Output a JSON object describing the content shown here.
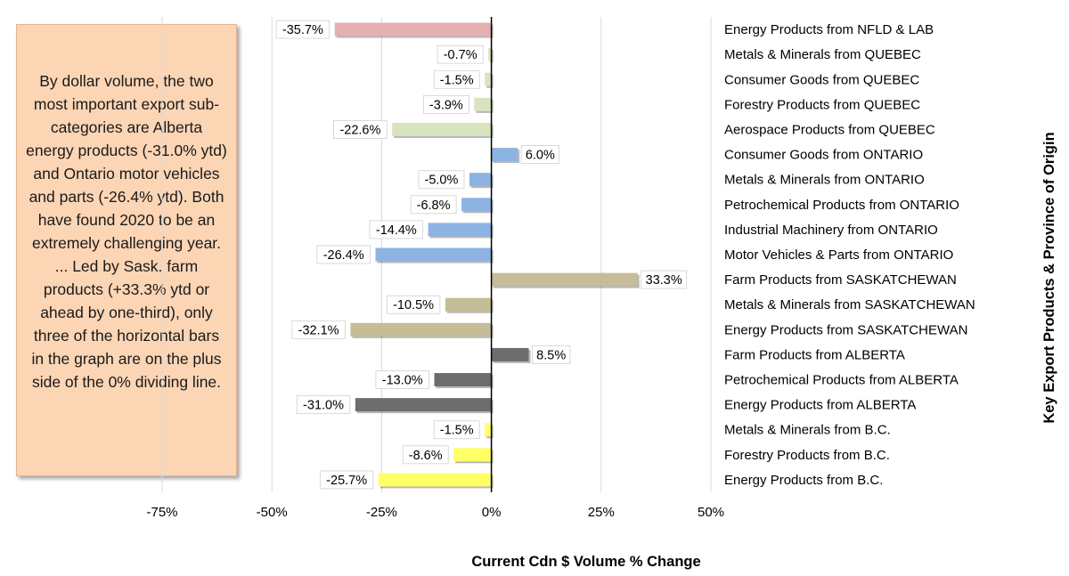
{
  "annotation": "By dollar volume, the two most important export sub-categories are Alberta energy products (-31.0% ytd) and Ontario motor vehicles and parts (-26.4% ytd). Both have found 2020 to be an extremely challenging year. ... Led by Sask. farm products (+33.3% ytd or ahead by one-third), only three of the horizontal bars in the graph are on the plus side of the 0% dividing line.",
  "chart_data": {
    "type": "bar",
    "orientation": "horizontal",
    "xlabel": "Current Cdn $ Volume % Change",
    "ylabel": "Key Export Products & Province of Origin",
    "xlim": [
      -75,
      50
    ],
    "xticks": [
      -75,
      -50,
      -25,
      0,
      25,
      50
    ],
    "xtick_labels": [
      "-75%",
      "-50%",
      "-25%",
      "0%",
      "25%",
      "50%"
    ],
    "grid": "vertical",
    "categories": [
      "Energy Products from NFLD & LAB",
      "Metals & Minerals from QUEBEC",
      "Consumer Goods from QUEBEC",
      "Forestry Products from QUEBEC",
      "Aerospace Products from QUEBEC",
      "Consumer Goods from ONTARIO",
      "Metals & Minerals from ONTARIO",
      "Petrochemical Products from ONTARIO",
      "Industrial Machinery from ONTARIO",
      "Motor Vehicles & Parts from ONTARIO",
      "Farm Products from SASKATCHEWAN",
      "Metals & Minerals from SASKATCHEWAN",
      "Energy Products from SASKATCHEWAN",
      "Farm Products from ALBERTA",
      "Petrochemical Products from ALBERTA",
      "Energy Products from ALBERTA",
      "Metals & Minerals from B.C.",
      "Forestry Products from B.C.",
      "Energy Products from B.C."
    ],
    "values": [
      -35.7,
      -0.7,
      -1.5,
      -3.9,
      -22.6,
      6.0,
      -5.0,
      -6.8,
      -14.4,
      -26.4,
      33.3,
      -10.5,
      -32.1,
      8.5,
      -13.0,
      -31.0,
      -1.5,
      -8.6,
      -25.7
    ],
    "value_labels": [
      "-35.7%",
      "-0.7%",
      "-1.5%",
      "-3.9%",
      "-22.6%",
      "6.0%",
      "-5.0%",
      "-6.8%",
      "-14.4%",
      "-26.4%",
      "33.3%",
      "-10.5%",
      "-32.1%",
      "8.5%",
      "-13.0%",
      "-31.0%",
      "-1.5%",
      "-8.6%",
      "-25.7%"
    ],
    "colors": [
      "#e6b0b0",
      "#d7e4bd",
      "#d7e4bd",
      "#d7e4bd",
      "#d7e4bd",
      "#8db3e2",
      "#8db3e2",
      "#8db3e2",
      "#8db3e2",
      "#8db3e2",
      "#c4bd97",
      "#c4bd97",
      "#c4bd97",
      "#6d6d6d",
      "#6d6d6d",
      "#6d6d6d",
      "#ffff66",
      "#ffff66",
      "#ffff66"
    ]
  }
}
